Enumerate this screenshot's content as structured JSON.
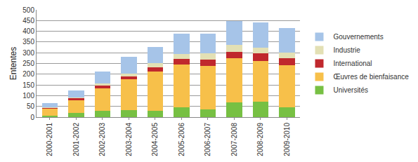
{
  "chart_data": {
    "type": "bar",
    "stacked": true,
    "grid": true,
    "legend": "right",
    "y_label": "Ententes",
    "categories": [
      "2000-2001",
      "2001-2002",
      "2002-2003",
      "2003-2004",
      "2004-2005",
      "2005-2006",
      "2006-2007",
      "2007-2008",
      "2008-2009",
      "2009-2010"
    ],
    "ylim": [
      0,
      500
    ],
    "yticks": [
      0,
      50,
      100,
      150,
      200,
      250,
      300,
      350,
      400,
      450,
      500
    ],
    "series": [
      {
        "name": "Universités",
        "color": "#77c043",
        "values": [
          5,
          20,
          28,
          33,
          30,
          45,
          35,
          70,
          72,
          45
        ]
      },
      {
        "name": "Œuvres de bienfaisance",
        "color": "#f7c04a",
        "values": [
          35,
          60,
          107,
          142,
          183,
          200,
          205,
          203,
          190,
          197
        ]
      },
      {
        "name": "International",
        "color": "#c0282d",
        "values": [
          3,
          8,
          13,
          15,
          20,
          25,
          27,
          30,
          35,
          33
        ]
      },
      {
        "name": "Industrie",
        "color": "#e3e0b4",
        "values": [
          2,
          5,
          10,
          13,
          20,
          25,
          30,
          32,
          28,
          25
        ]
      },
      {
        "name": "Gouvernements",
        "color": "#a6c4e8",
        "values": [
          20,
          32,
          55,
          77,
          75,
          93,
          93,
          112,
          115,
          115
        ]
      }
    ]
  }
}
